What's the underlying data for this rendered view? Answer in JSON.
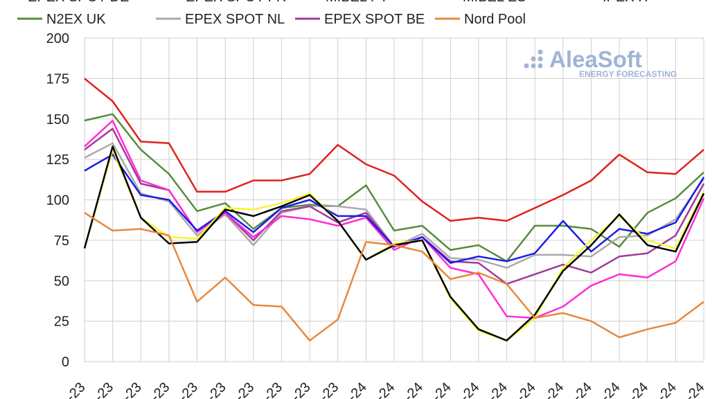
{
  "brand": {
    "name": "AleaSoft",
    "tagline": "ENERGY FORECASTING",
    "color": "#9fb3d6"
  },
  "chart_data": {
    "type": "line",
    "title": "",
    "xlabel": "",
    "ylabel": "",
    "ylim": [
      0,
      200
    ],
    "yticks": [
      0,
      25,
      50,
      75,
      100,
      125,
      150,
      175,
      200
    ],
    "grid": true,
    "legend_position": "top",
    "legend_top_row_clipped": [
      "EPEX SPOT DE",
      "EPEX SPOT FR",
      "MIBEL PT",
      "MIBEL ES",
      "IPEX IT"
    ],
    "categories": [
      "",
      "",
      "",
      "",
      "",
      "",
      "",
      "",
      "",
      "",
      "",
      "",
      "",
      "",
      "",
      "",
      "",
      "",
      "",
      "",
      "",
      "",
      ""
    ],
    "tick_labels": [
      "-23",
      "-23",
      "-23",
      "-23",
      "-23",
      "-23",
      "-23",
      "-23",
      "-23",
      "-23",
      "-24",
      "-24",
      "-24",
      "-24",
      "-24",
      "-24",
      "-24",
      "-24",
      "-24",
      "-24",
      "-24",
      "-24",
      "-24"
    ],
    "series": [
      {
        "name": "IPEX IT",
        "color": "#e0201b",
        "legend": false,
        "values": [
          175,
          161,
          136,
          135,
          105,
          105,
          112,
          112,
          116,
          134,
          122,
          115,
          99,
          87,
          89,
          87,
          95,
          103,
          112,
          128,
          117,
          116,
          131
        ]
      },
      {
        "name": "N2EX UK",
        "color": "#568b3a",
        "legend": true,
        "values": [
          149,
          153,
          131,
          116,
          93,
          98,
          82,
          95,
          97,
          96,
          109,
          81,
          84,
          69,
          72,
          62,
          84,
          84,
          82,
          71,
          92,
          101,
          117
        ]
      },
      {
        "name": "EPEX SPOT NL",
        "color": "#aaaaaa",
        "legend": true,
        "values": [
          126,
          135,
          104,
          99,
          78,
          91,
          72,
          92,
          96,
          96,
          94,
          71,
          79,
          64,
          63,
          58,
          66,
          66,
          65,
          77,
          78,
          88,
          113
        ]
      },
      {
        "name": "EPEX SPOT BE",
        "color": "#a03a9b",
        "legend": true,
        "values": [
          131,
          144,
          110,
          106,
          80,
          92,
          75,
          93,
          96,
          86,
          92,
          71,
          77,
          62,
          61,
          48,
          54,
          60,
          55,
          65,
          67,
          78,
          110
        ]
      },
      {
        "name": "EPEX SPOT FR",
        "color": "#ff2bd8",
        "legend": false,
        "values": [
          133,
          149,
          112,
          106,
          80,
          92,
          77,
          90,
          88,
          84,
          89,
          69,
          77,
          58,
          54,
          28,
          27,
          34,
          47,
          54,
          52,
          62,
          101
        ]
      },
      {
        "name": "EPEX SPOT DE",
        "color": "#1b1be6",
        "legend": false,
        "values": [
          118,
          128,
          103,
          100,
          81,
          93,
          80,
          95,
          100,
          90,
          90,
          71,
          77,
          61,
          65,
          62,
          67,
          87,
          68,
          82,
          79,
          86,
          114
        ]
      },
      {
        "name": "MIBEL PT",
        "color": "#f5f532",
        "legend": false,
        "values": [
          70,
          131,
          89,
          77,
          76,
          95,
          94,
          98,
          104,
          87,
          63,
          73,
          75,
          39,
          19,
          13,
          27,
          58,
          75,
          90,
          75,
          70,
          105
        ]
      },
      {
        "name": "MIBEL ES",
        "color": "#000000",
        "legend": false,
        "values": [
          70,
          133,
          89,
          73,
          74,
          94,
          90,
          96,
          103,
          87,
          63,
          72,
          75,
          40,
          20,
          13,
          29,
          56,
          72,
          91,
          72,
          68,
          104
        ]
      },
      {
        "name": "Nord Pool",
        "color": "#e8883a",
        "legend": true,
        "values": [
          92,
          81,
          82,
          78,
          37,
          52,
          35,
          34,
          13,
          26,
          74,
          72,
          68,
          51,
          55,
          48,
          27,
          30,
          25,
          15,
          20,
          24,
          37
        ]
      }
    ]
  }
}
